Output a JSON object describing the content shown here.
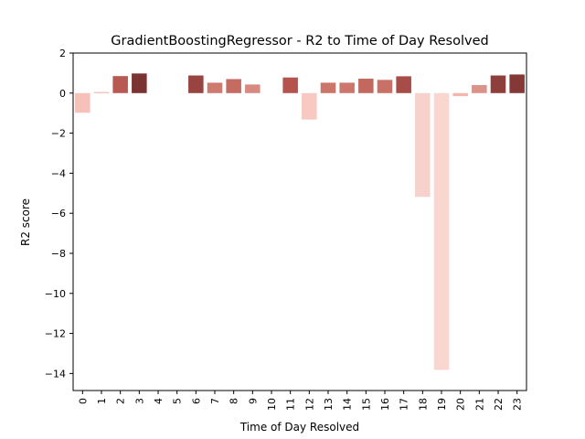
{
  "chart_data": {
    "type": "bar",
    "title": "GradientBoostingRegressor - R2 to Time of Day Resolved",
    "xlabel": "Time of Day Resolved",
    "ylabel": "R2 score",
    "ylim": [
      -14.85,
      2.0
    ],
    "yticks": [
      2,
      0,
      -2,
      -4,
      -6,
      -8,
      -10,
      -12,
      -14
    ],
    "ytick_labels": [
      "2",
      "0",
      "−2",
      "−4",
      "−6",
      "−8",
      "−10",
      "−12",
      "−14"
    ],
    "categories": [
      "0",
      "1",
      "2",
      "3",
      "4",
      "5",
      "6",
      "7",
      "8",
      "9",
      "10",
      "11",
      "12",
      "13",
      "14",
      "15",
      "16",
      "17",
      "18",
      "19",
      "20",
      "21",
      "22",
      "23"
    ],
    "values": [
      -0.98,
      0.05,
      0.85,
      0.98,
      0.0,
      0.0,
      0.88,
      0.52,
      0.7,
      0.43,
      0.0,
      0.78,
      -1.32,
      0.52,
      0.52,
      0.72,
      0.66,
      0.84,
      -5.18,
      -13.82,
      -0.15,
      0.4,
      0.88,
      0.93
    ],
    "colors": [
      "#f5c1b9",
      "#f3b2a8",
      "#b85a52",
      "#7a3330",
      "#ffffff",
      "#ffffff",
      "#984440",
      "#cf7a6f",
      "#c56c62",
      "#d88a80",
      "#ffffff",
      "#b4544d",
      "#f7c9c2",
      "#cc7469",
      "#cd776c",
      "#c3685f",
      "#ca7167",
      "#a84c47",
      "#f7d1cb",
      "#fad6d1",
      "#f3b6ad",
      "#db9288",
      "#8e3f3b",
      "#843936"
    ],
    "grid": false,
    "legend": "none"
  }
}
